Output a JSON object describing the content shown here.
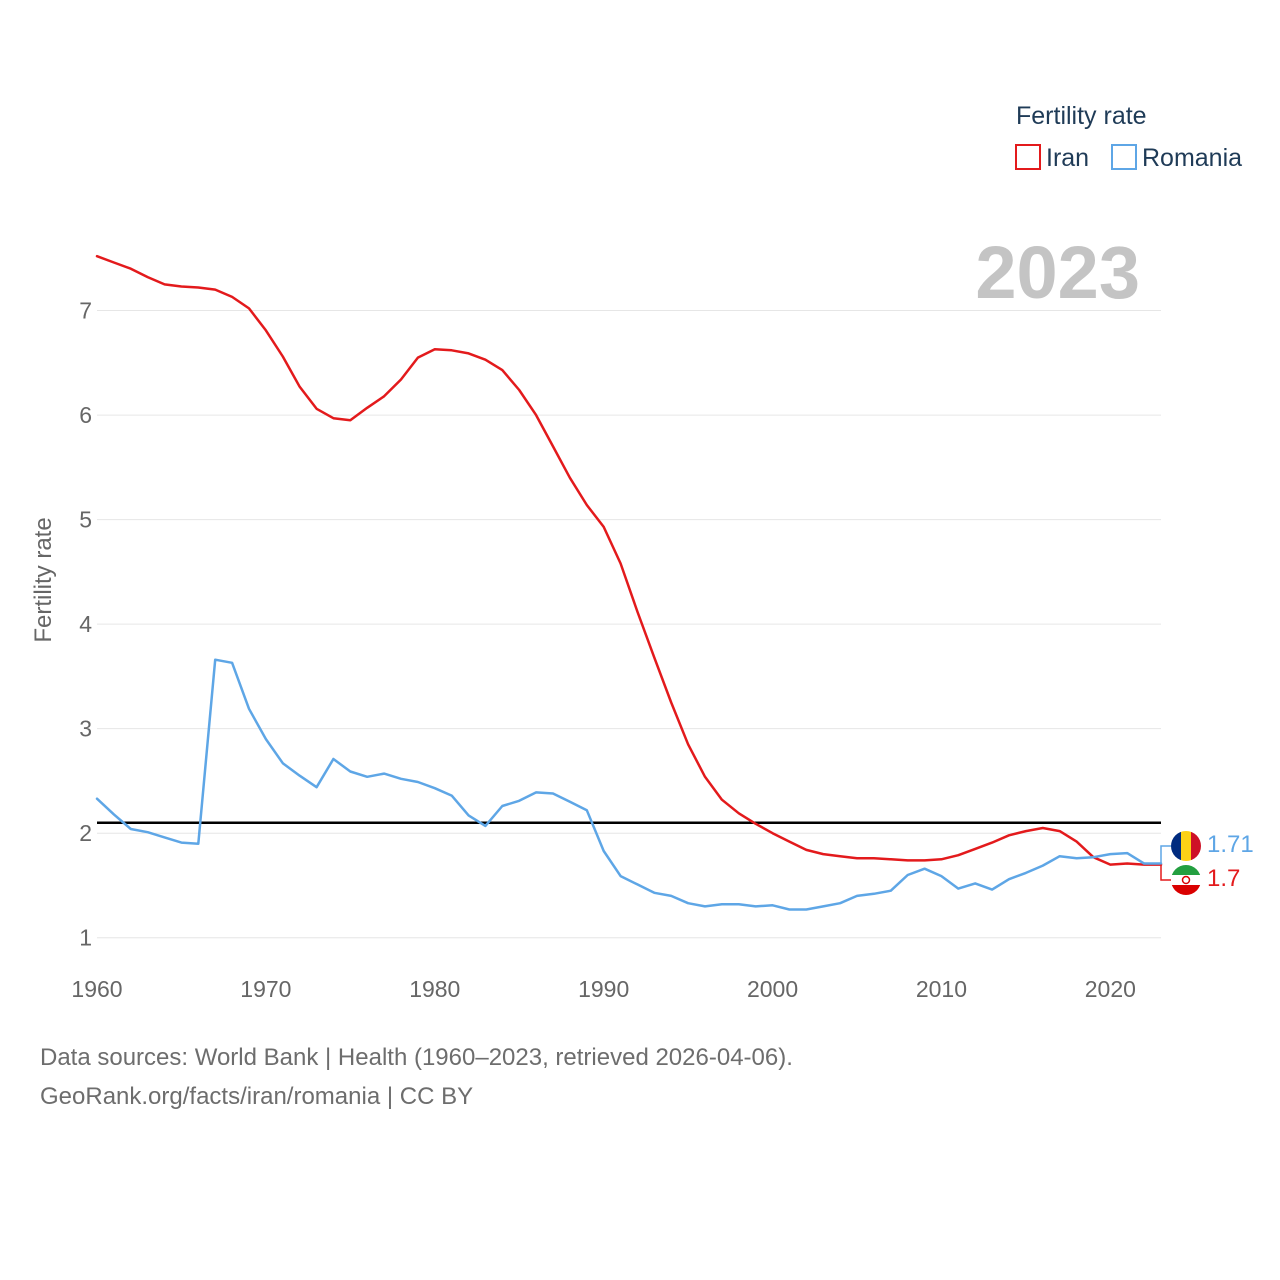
{
  "chart_data": {
    "type": "line",
    "title": "Fertility rate",
    "xlabel": "",
    "ylabel": "Fertility rate",
    "xlim": [
      1960,
      2023
    ],
    "ylim": [
      0.72,
      7.78
    ],
    "yticks": [
      1,
      2,
      3,
      4,
      5,
      6,
      7
    ],
    "xticks": [
      1960,
      1970,
      1980,
      1990,
      2000,
      2010,
      2020
    ],
    "grid": true,
    "legend_position": "top-right",
    "current_year": "2023",
    "reference_line": {
      "y": 2.1,
      "color": "#000000"
    },
    "x": [
      1960,
      1961,
      1962,
      1963,
      1964,
      1965,
      1966,
      1967,
      1968,
      1969,
      1970,
      1971,
      1972,
      1973,
      1974,
      1975,
      1976,
      1977,
      1978,
      1979,
      1980,
      1981,
      1982,
      1983,
      1984,
      1985,
      1986,
      1987,
      1988,
      1989,
      1990,
      1991,
      1992,
      1993,
      1994,
      1995,
      1996,
      1997,
      1998,
      1999,
      2000,
      2001,
      2002,
      2003,
      2004,
      2005,
      2006,
      2007,
      2008,
      2009,
      2010,
      2011,
      2012,
      2013,
      2014,
      2015,
      2016,
      2017,
      2018,
      2019,
      2020,
      2021,
      2022,
      2023
    ],
    "series": [
      {
        "name": "Iran",
        "color": "#e31a1c",
        "end_label": "1.7",
        "values": [
          7.52,
          7.46,
          7.4,
          7.32,
          7.25,
          7.23,
          7.22,
          7.2,
          7.13,
          7.02,
          6.81,
          6.56,
          6.27,
          6.06,
          5.97,
          5.95,
          6.07,
          6.18,
          6.34,
          6.55,
          6.63,
          6.62,
          6.59,
          6.53,
          6.43,
          6.24,
          6.0,
          5.7,
          5.4,
          5.14,
          4.93,
          4.58,
          4.12,
          3.68,
          3.25,
          2.85,
          2.54,
          2.32,
          2.19,
          2.09,
          2.0,
          1.92,
          1.84,
          1.8,
          1.78,
          1.76,
          1.76,
          1.75,
          1.74,
          1.74,
          1.75,
          1.79,
          1.85,
          1.91,
          1.98,
          2.02,
          2.05,
          2.02,
          1.92,
          1.77,
          1.7,
          1.71,
          1.7,
          1.7
        ]
      },
      {
        "name": "Romania",
        "color": "#5ea6e6",
        "end_label": "1.71",
        "values": [
          2.33,
          2.18,
          2.04,
          2.01,
          1.96,
          1.91,
          1.9,
          3.66,
          3.63,
          3.19,
          2.9,
          2.67,
          2.55,
          2.44,
          2.71,
          2.59,
          2.54,
          2.57,
          2.52,
          2.49,
          2.43,
          2.36,
          2.17,
          2.07,
          2.26,
          2.31,
          2.39,
          2.38,
          2.3,
          2.22,
          1.83,
          1.59,
          1.51,
          1.43,
          1.4,
          1.33,
          1.3,
          1.32,
          1.32,
          1.3,
          1.31,
          1.27,
          1.27,
          1.3,
          1.33,
          1.4,
          1.42,
          1.45,
          1.6,
          1.66,
          1.59,
          1.47,
          1.52,
          1.46,
          1.56,
          1.62,
          1.69,
          1.78,
          1.76,
          1.77,
          1.8,
          1.81,
          1.71,
          1.71
        ]
      }
    ]
  },
  "source": {
    "line1": "Data sources: World Bank | Health (1960–2023, retrieved 2026-04-06).",
    "line2": "GeoRank.org/facts/iran/romania | CC BY"
  }
}
